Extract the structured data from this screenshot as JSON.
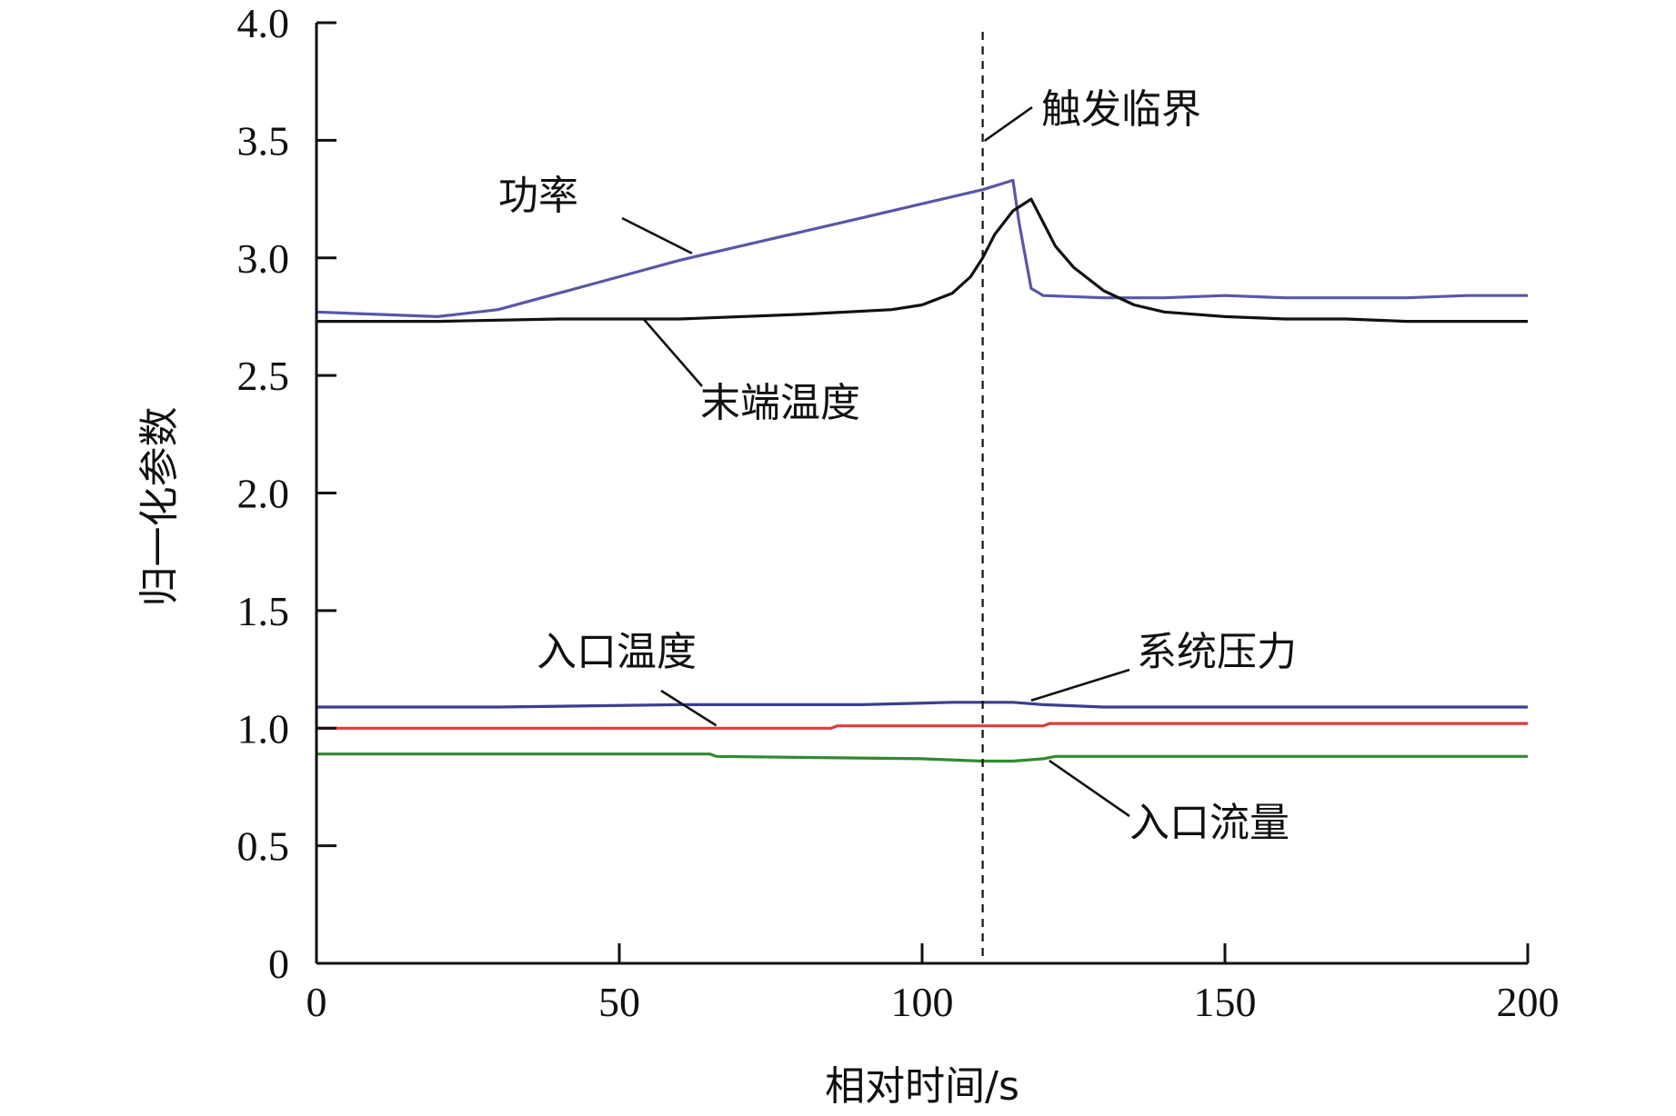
{
  "chart_data": {
    "type": "line",
    "title": "",
    "xlabel": "相对时间/s",
    "ylabel": "归一化参数",
    "xlim": [
      0,
      200
    ],
    "ylim": [
      0,
      4.0
    ],
    "xticks": [
      0,
      50,
      100,
      150,
      200
    ],
    "xtick_labels": [
      "0",
      "50",
      "100",
      "150",
      "200"
    ],
    "yticks": [
      0,
      0.5,
      1.0,
      1.5,
      2.0,
      2.5,
      3.0,
      3.5,
      4.0
    ],
    "ytick_labels": [
      "0",
      "0.5",
      "1.0",
      "1.5",
      "2.0",
      "2.5",
      "3.0",
      "3.5",
      "4.0"
    ],
    "grid": false,
    "legend": "none",
    "critical_line": {
      "x": 110,
      "label": "触发临界"
    },
    "series": [
      {
        "name": "功率",
        "color": "#5a56a6",
        "x": [
          0,
          10,
          20,
          30,
          40,
          50,
          60,
          70,
          80,
          90,
          100,
          110,
          115,
          116,
          118,
          120,
          130,
          140,
          150,
          160,
          170,
          180,
          190,
          200
        ],
        "y": [
          2.77,
          2.76,
          2.75,
          2.78,
          2.85,
          2.92,
          2.99,
          3.05,
          3.11,
          3.17,
          3.23,
          3.29,
          3.33,
          3.15,
          2.87,
          2.84,
          2.83,
          2.83,
          2.84,
          2.83,
          2.83,
          2.83,
          2.84,
          2.84
        ]
      },
      {
        "name": "末端温度",
        "color": "#111111",
        "x": [
          0,
          20,
          40,
          60,
          80,
          95,
          100,
          105,
          108,
          110,
          112,
          115,
          118,
          120,
          122,
          125,
          130,
          135,
          140,
          150,
          160,
          170,
          180,
          190,
          200
        ],
        "y": [
          2.73,
          2.73,
          2.74,
          2.74,
          2.76,
          2.78,
          2.8,
          2.85,
          2.92,
          3.0,
          3.1,
          3.2,
          3.25,
          3.15,
          3.05,
          2.96,
          2.86,
          2.8,
          2.77,
          2.75,
          2.74,
          2.74,
          2.73,
          2.73,
          2.73
        ]
      },
      {
        "name": "系统压力",
        "color": "#3b3f8f",
        "x": [
          0,
          30,
          60,
          90,
          105,
          110,
          115,
          120,
          130,
          160,
          200
        ],
        "y": [
          1.09,
          1.09,
          1.1,
          1.1,
          1.11,
          1.11,
          1.11,
          1.1,
          1.09,
          1.09,
          1.09
        ]
      },
      {
        "name": "入口温度",
        "color": "#e03a3a",
        "x": [
          0,
          40,
          85,
          86,
          120,
          121,
          160,
          200
        ],
        "y": [
          1.0,
          1.0,
          1.0,
          1.01,
          1.01,
          1.02,
          1.02,
          1.02
        ]
      },
      {
        "name": "入口流量",
        "color": "#2f8a2f",
        "x": [
          0,
          30,
          65,
          66,
          100,
          110,
          115,
          120,
          122,
          150,
          200
        ],
        "y": [
          0.89,
          0.89,
          0.89,
          0.88,
          0.87,
          0.86,
          0.86,
          0.87,
          0.88,
          0.88,
          0.88
        ]
      }
    ]
  }
}
